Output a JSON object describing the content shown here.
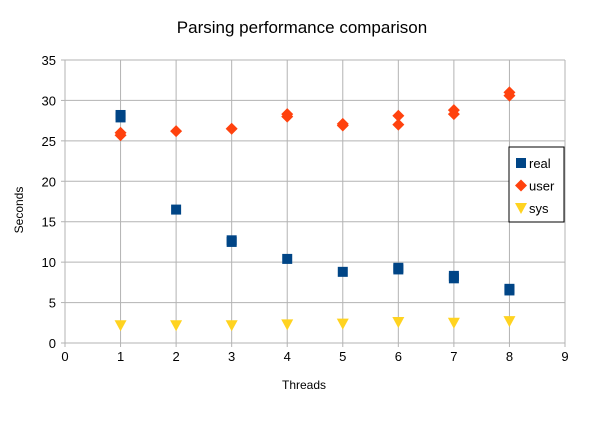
{
  "chart_data": {
    "type": "scatter",
    "title": "Parsing performance comparison",
    "xlabel": "Threads",
    "ylabel": "Seconds",
    "xlim": [
      0,
      9
    ],
    "ylim": [
      0,
      35
    ],
    "xticks": [
      0,
      1,
      2,
      3,
      4,
      5,
      6,
      7,
      8,
      9
    ],
    "yticks": [
      0,
      5,
      10,
      15,
      20,
      25,
      30,
      35
    ],
    "grid": true,
    "legend_position": "right",
    "series": [
      {
        "name": "real",
        "color": "#004586",
        "marker": "square",
        "points": [
          [
            1,
            28.2
          ],
          [
            1,
            27.9
          ],
          [
            2,
            16.5
          ],
          [
            3,
            12.7
          ],
          [
            3,
            12.5
          ],
          [
            4,
            10.4
          ],
          [
            5,
            8.8
          ],
          [
            6,
            9.3
          ],
          [
            6,
            9.1
          ],
          [
            7,
            8.3
          ],
          [
            7,
            8.0
          ],
          [
            8,
            6.7
          ],
          [
            8,
            6.5
          ]
        ]
      },
      {
        "name": "user",
        "color": "#ff420e",
        "marker": "diamond",
        "points": [
          [
            1,
            26.0
          ],
          [
            1,
            25.7
          ],
          [
            2,
            26.2
          ],
          [
            3,
            26.5
          ],
          [
            4,
            28.3
          ],
          [
            4,
            28.0
          ],
          [
            5,
            27.1
          ],
          [
            5,
            26.9
          ],
          [
            6,
            28.1
          ],
          [
            6,
            27.0
          ],
          [
            7,
            28.8
          ],
          [
            7,
            28.3
          ],
          [
            8,
            31.0
          ],
          [
            8,
            30.6
          ]
        ]
      },
      {
        "name": "sys",
        "color": "#ffd320",
        "marker": "triangle-down",
        "points": [
          [
            1,
            2.2
          ],
          [
            2,
            2.2
          ],
          [
            3,
            2.2
          ],
          [
            4,
            2.3
          ],
          [
            5,
            2.4
          ],
          [
            6,
            2.6
          ],
          [
            7,
            2.5
          ],
          [
            8,
            2.7
          ]
        ]
      }
    ]
  }
}
